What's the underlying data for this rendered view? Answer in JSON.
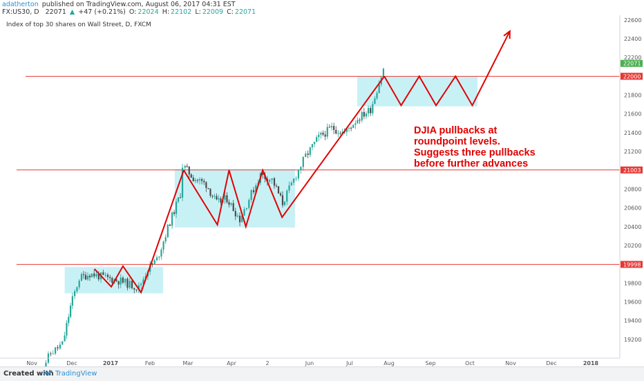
{
  "header": {
    "author": "adatherton",
    "published_text": "published on TradingView.com, August 06, 2017 04:31 EST",
    "symbol": "FX:US30, D",
    "last": "22071",
    "change": "+47 (+0.21%)",
    "open_label": "O:",
    "open": "22024",
    "high_label": "H:",
    "high": "22102",
    "low_label": "L:",
    "low": "22009",
    "close_label": "C:",
    "close": "22071"
  },
  "footer": {
    "created_with": "Created with",
    "brand": "TradingView"
  },
  "colors": {
    "up": "#26a69a",
    "down": "#4a4a4a",
    "level_line": "#e53935",
    "zone": "#c8f1f6",
    "annotation": "#e00000",
    "price_up_badge": "#4caf50"
  },
  "chart_data": {
    "type": "candlestick",
    "title": "Index of top 30 shares on Wall Street, D, FXCM",
    "x_ticks": [
      "Nov",
      "Dec",
      "2017",
      "Feb",
      "Mar",
      "Apr",
      "2",
      "Jun",
      "Jul",
      "Aug",
      "Sep",
      "Oct",
      "Nov",
      "Dec",
      "2018"
    ],
    "y_ticks": [
      19200,
      19400,
      19600,
      19800,
      20000,
      20200,
      20400,
      20600,
      20800,
      21000,
      21200,
      21400,
      21600,
      21800,
      22000,
      22200,
      22400,
      22600
    ],
    "ylim": [
      19000,
      22650
    ],
    "last_price_label": "22071",
    "horizontal_levels": [
      {
        "value": 22000,
        "label": "22000"
      },
      {
        "value": 21003,
        "label": "21003"
      },
      {
        "value": 19998,
        "label": "19998"
      }
    ],
    "zones": [
      {
        "x_start": "2016-11-29",
        "x_end": "2017-02-13",
        "y_low": 19690,
        "y_high": 19970
      },
      {
        "x_start": "2017-02-22",
        "x_end": "2017-05-26",
        "y_low": 20390,
        "y_high": 21010
      },
      {
        "x_start": "2017-07-13",
        "x_end": "2017-10-14",
        "y_low": 21680,
        "y_high": 22000
      }
    ],
    "candles_summary": [
      {
        "date": "2016-11-09",
        "close": 18800
      },
      {
        "date": "2016-11-20",
        "close": 19050
      },
      {
        "date": "2016-11-29",
        "close": 19150
      },
      {
        "date": "2016-12-05",
        "close": 19550
      },
      {
        "date": "2016-12-12",
        "close": 19850
      },
      {
        "date": "2016-12-20",
        "close": 19900
      },
      {
        "date": "2017-01-03",
        "close": 19850
      },
      {
        "date": "2017-01-13",
        "close": 19820
      },
      {
        "date": "2017-01-27",
        "close": 19750
      },
      {
        "date": "2017-02-03",
        "close": 19950
      },
      {
        "date": "2017-02-10",
        "close": 20050
      },
      {
        "date": "2017-02-20",
        "close": 20450
      },
      {
        "date": "2017-02-28",
        "close": 20750
      },
      {
        "date": "2017-03-02",
        "close": 21050
      },
      {
        "date": "2017-03-10",
        "close": 20920
      },
      {
        "date": "2017-03-20",
        "close": 20850
      },
      {
        "date": "2017-03-28",
        "close": 20650
      },
      {
        "date": "2017-04-05",
        "close": 20700
      },
      {
        "date": "2017-04-15",
        "close": 20480
      },
      {
        "date": "2017-04-24",
        "close": 20750
      },
      {
        "date": "2017-05-01",
        "close": 20950
      },
      {
        "date": "2017-05-10",
        "close": 20900
      },
      {
        "date": "2017-05-18",
        "close": 20650
      },
      {
        "date": "2017-05-25",
        "close": 20850
      },
      {
        "date": "2017-06-05",
        "close": 21150
      },
      {
        "date": "2017-06-15",
        "close": 21350
      },
      {
        "date": "2017-06-25",
        "close": 21450
      },
      {
        "date": "2017-07-05",
        "close": 21400
      },
      {
        "date": "2017-07-15",
        "close": 21550
      },
      {
        "date": "2017-07-25",
        "close": 21650
      },
      {
        "date": "2017-08-04",
        "close": 22071
      }
    ],
    "drawings": [
      {
        "name": "zigzag-1",
        "points": [
          [
            "2016-12-22",
            19950
          ],
          [
            "2017-01-04",
            19760
          ],
          [
            "2017-01-13",
            19980
          ],
          [
            "2017-01-27",
            19700
          ],
          [
            "2017-03-01",
            21000
          ]
        ]
      },
      {
        "name": "zigzag-2",
        "points": [
          [
            "2017-03-01",
            21000
          ],
          [
            "2017-03-27",
            20420
          ],
          [
            "2017-04-05",
            21000
          ],
          [
            "2017-04-18",
            20400
          ],
          [
            "2017-05-01",
            21000
          ],
          [
            "2017-05-16",
            20500
          ],
          [
            "2017-08-03",
            22000
          ]
        ]
      },
      {
        "name": "zigzag-3",
        "points": [
          [
            "2017-08-03",
            22000
          ],
          [
            "2017-08-16",
            21690
          ],
          [
            "2017-08-30",
            22000
          ],
          [
            "2017-09-12",
            21690
          ],
          [
            "2017-09-27",
            22000
          ],
          [
            "2017-10-10",
            21690
          ],
          [
            "2017-11-08",
            22480
          ]
        ]
      }
    ],
    "annotation_lines": [
      "DJIA pullbacks at",
      "roundpoint levels.",
      "Suggests three pullbacks",
      "before further advances"
    ]
  }
}
